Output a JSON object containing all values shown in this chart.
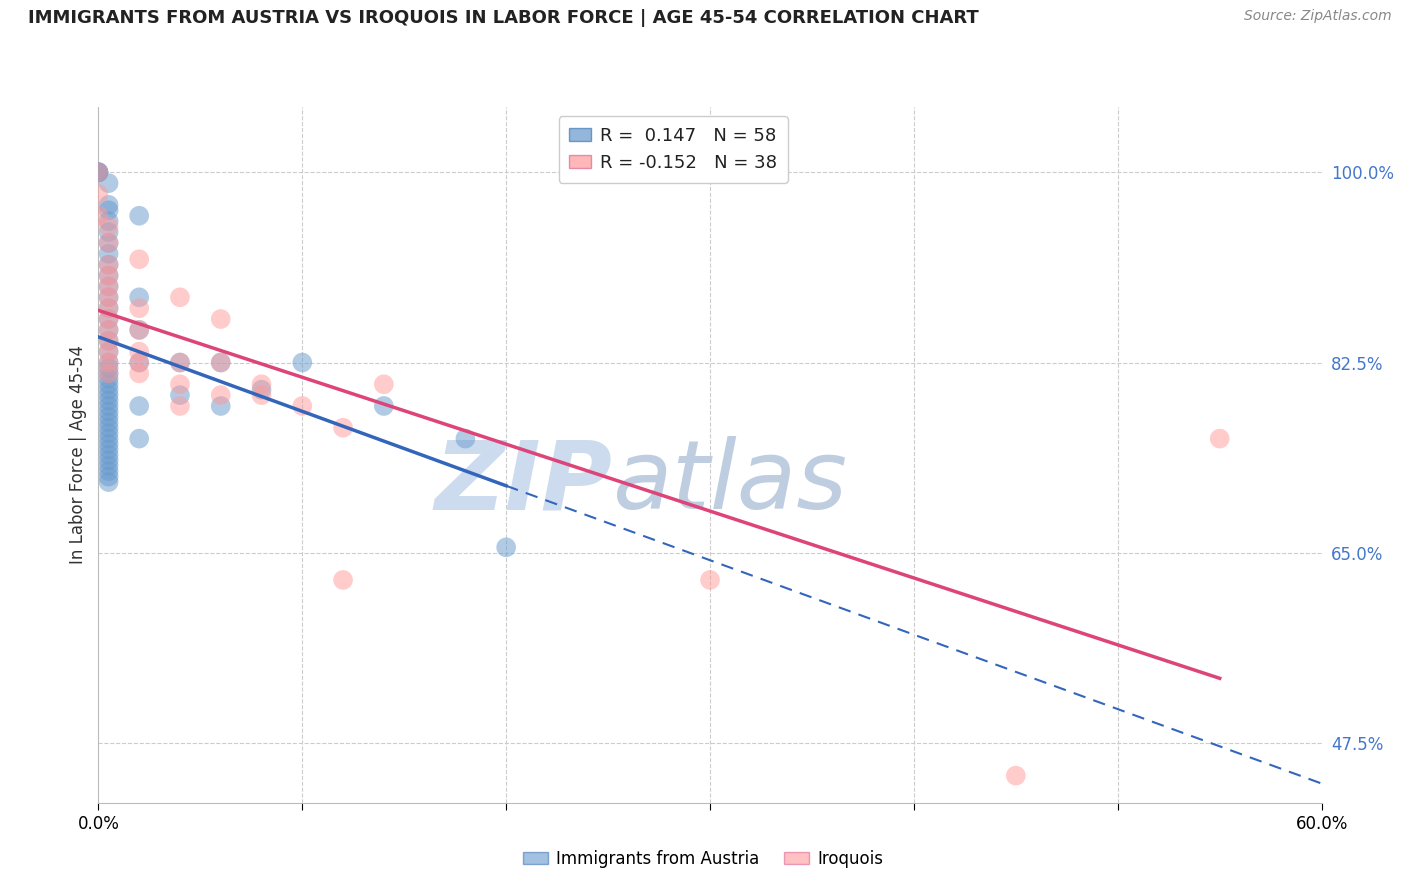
{
  "title": "IMMIGRANTS FROM AUSTRIA VS IROQUOIS IN LABOR FORCE | AGE 45-54 CORRELATION CHART",
  "source": "Source: ZipAtlas.com",
  "ylabel": "In Labor Force | Age 45-54",
  "xlim": [
    0.0,
    0.6
  ],
  "ylim": [
    0.42,
    1.06
  ],
  "xticks": [
    0.0,
    0.1,
    0.2,
    0.3,
    0.4,
    0.5,
    0.6
  ],
  "xticklabels": [
    "0.0%",
    "",
    "",
    "",
    "",
    "",
    "60.0%"
  ],
  "yticks_right": [
    0.475,
    0.65,
    0.825,
    1.0
  ],
  "ytick_right_labels": [
    "47.5%",
    "65.0%",
    "82.5%",
    "100.0%"
  ],
  "legend_blue_label": "R =  0.147   N = 58",
  "legend_pink_label": "R = -0.152   N = 38",
  "blue_color": "#6699CC",
  "pink_color": "#FF9999",
  "blue_scatter": [
    [
      0.0,
      1.0
    ],
    [
      0.0,
      1.0
    ],
    [
      0.0,
      1.0
    ],
    [
      0.0,
      1.0
    ],
    [
      0.005,
      0.99
    ],
    [
      0.005,
      0.97
    ],
    [
      0.005,
      0.965
    ],
    [
      0.005,
      0.955
    ],
    [
      0.005,
      0.945
    ],
    [
      0.005,
      0.935
    ],
    [
      0.005,
      0.925
    ],
    [
      0.005,
      0.915
    ],
    [
      0.005,
      0.905
    ],
    [
      0.005,
      0.895
    ],
    [
      0.005,
      0.885
    ],
    [
      0.005,
      0.875
    ],
    [
      0.005,
      0.865
    ],
    [
      0.005,
      0.855
    ],
    [
      0.005,
      0.845
    ],
    [
      0.005,
      0.835
    ],
    [
      0.005,
      0.825
    ],
    [
      0.005,
      0.82
    ],
    [
      0.005,
      0.815
    ],
    [
      0.005,
      0.81
    ],
    [
      0.005,
      0.805
    ],
    [
      0.005,
      0.8
    ],
    [
      0.005,
      0.795
    ],
    [
      0.005,
      0.79
    ],
    [
      0.005,
      0.785
    ],
    [
      0.005,
      0.78
    ],
    [
      0.005,
      0.775
    ],
    [
      0.005,
      0.77
    ],
    [
      0.005,
      0.765
    ],
    [
      0.005,
      0.76
    ],
    [
      0.005,
      0.755
    ],
    [
      0.005,
      0.75
    ],
    [
      0.005,
      0.745
    ],
    [
      0.005,
      0.74
    ],
    [
      0.005,
      0.735
    ],
    [
      0.005,
      0.73
    ],
    [
      0.005,
      0.725
    ],
    [
      0.005,
      0.72
    ],
    [
      0.005,
      0.715
    ],
    [
      0.02,
      0.96
    ],
    [
      0.02,
      0.885
    ],
    [
      0.02,
      0.855
    ],
    [
      0.02,
      0.825
    ],
    [
      0.02,
      0.785
    ],
    [
      0.02,
      0.755
    ],
    [
      0.04,
      0.825
    ],
    [
      0.04,
      0.795
    ],
    [
      0.06,
      0.825
    ],
    [
      0.06,
      0.785
    ],
    [
      0.08,
      0.8
    ],
    [
      0.1,
      0.825
    ],
    [
      0.14,
      0.785
    ],
    [
      0.18,
      0.755
    ],
    [
      0.2,
      0.655
    ]
  ],
  "pink_scatter": [
    [
      0.0,
      1.0
    ],
    [
      0.0,
      0.98
    ],
    [
      0.0,
      0.96
    ],
    [
      0.005,
      0.95
    ],
    [
      0.005,
      0.935
    ],
    [
      0.005,
      0.915
    ],
    [
      0.005,
      0.905
    ],
    [
      0.005,
      0.895
    ],
    [
      0.005,
      0.885
    ],
    [
      0.005,
      0.875
    ],
    [
      0.005,
      0.865
    ],
    [
      0.005,
      0.855
    ],
    [
      0.005,
      0.845
    ],
    [
      0.005,
      0.835
    ],
    [
      0.005,
      0.825
    ],
    [
      0.005,
      0.815
    ],
    [
      0.02,
      0.92
    ],
    [
      0.02,
      0.875
    ],
    [
      0.02,
      0.855
    ],
    [
      0.02,
      0.835
    ],
    [
      0.02,
      0.825
    ],
    [
      0.02,
      0.815
    ],
    [
      0.04,
      0.885
    ],
    [
      0.04,
      0.825
    ],
    [
      0.04,
      0.805
    ],
    [
      0.04,
      0.785
    ],
    [
      0.06,
      0.865
    ],
    [
      0.06,
      0.825
    ],
    [
      0.06,
      0.795
    ],
    [
      0.08,
      0.805
    ],
    [
      0.08,
      0.795
    ],
    [
      0.1,
      0.785
    ],
    [
      0.12,
      0.765
    ],
    [
      0.12,
      0.625
    ],
    [
      0.14,
      0.805
    ],
    [
      0.3,
      0.625
    ],
    [
      0.55,
      0.755
    ],
    [
      0.45,
      0.445
    ]
  ],
  "watermark_zip": "ZIP",
  "watermark_atlas": "atlas",
  "watermark_color_zip": "#C8D8EE",
  "watermark_color_atlas": "#C8D8EE",
  "grid_color": "#CCCCCC",
  "background_color": "#FFFFFF",
  "blue_line_color": "#3366BB",
  "pink_line_color": "#DD4477"
}
